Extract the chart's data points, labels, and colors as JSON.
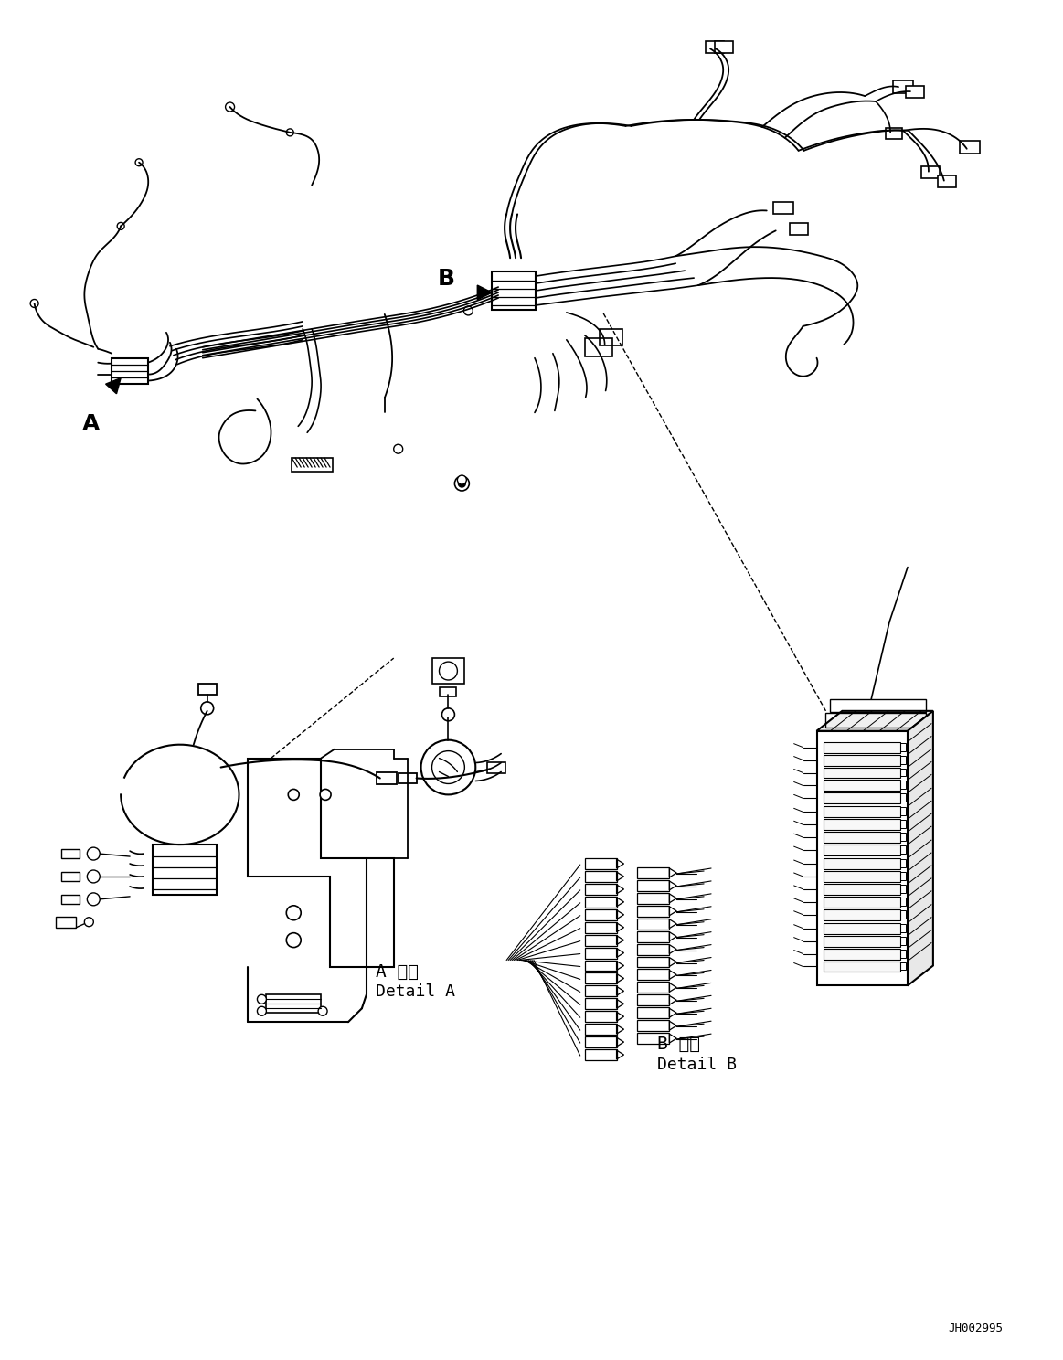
{
  "background_color": "#ffffff",
  "line_color": "#000000",
  "figure_width": 11.63,
  "figure_height": 14.88,
  "dpi": 100,
  "label_A": "A",
  "label_B": "B",
  "label_detail_A_jp": "A 詳細",
  "label_detail_A_en": "Detail A",
  "label_detail_B_jp": "B 詳細",
  "label_detail_B_en": "Detail B",
  "watermark": "JH002995"
}
